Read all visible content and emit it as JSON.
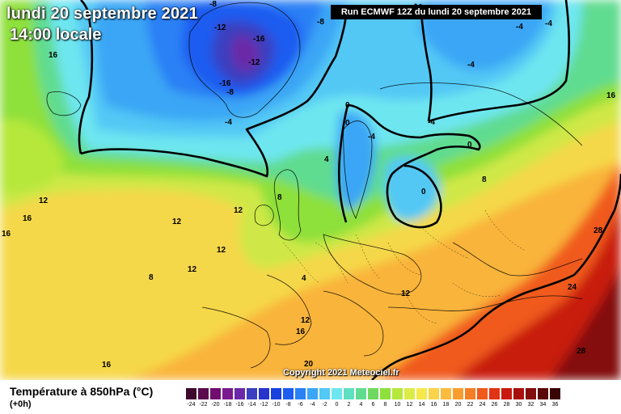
{
  "header": {
    "date": "lundi 20 septembre 2021",
    "time": "14:00 locale",
    "run": "Run ECMWF 12Z du lundi 20 septembre 2021"
  },
  "footer": {
    "copyright": "Copyright 2021 Meteociel.fr"
  },
  "legend": {
    "title": "Température à 850hPa (°C)",
    "subtitle": "(+0h)",
    "ticks": [
      "-24",
      "-22",
      "-20",
      "-18",
      "-16",
      "-14",
      "-12",
      "-10",
      "-8",
      "-6",
      "-4",
      "-2",
      "0",
      "2",
      "4",
      "6",
      "8",
      "10",
      "12",
      "14",
      "16",
      "18",
      "20",
      "22",
      "24",
      "26",
      "28",
      "30",
      "32",
      "34",
      "36"
    ],
    "colors": [
      "#3d0a2e",
      "#5a0b4e",
      "#700d6e",
      "#7a1a8e",
      "#6a2aa8",
      "#3b3fbf",
      "#2733cc",
      "#1a40e0",
      "#1d5cf0",
      "#2a80f5",
      "#3aa6f5",
      "#52c8f5",
      "#6ee6f0",
      "#5fe0c0",
      "#60dc90",
      "#6fd860",
      "#8ee03a",
      "#b5e83a",
      "#dcec46",
      "#f5e84a",
      "#fbd34a",
      "#fbbb3e",
      "#f99e2e",
      "#f67e24",
      "#f05a1c",
      "#e03414",
      "#c81a10",
      "#a8100e",
      "#840c0c",
      "#5c0808",
      "#380404"
    ]
  },
  "map": {
    "isotherm_labels": [
      {
        "text": "-12",
        "value": -12
      },
      {
        "text": "-16",
        "value": -16
      },
      {
        "text": "-12",
        "value": -12
      },
      {
        "text": "-16",
        "value": -16
      },
      {
        "text": "-8",
        "value": -8
      },
      {
        "text": "-8",
        "value": -8
      },
      {
        "text": "-8",
        "value": -8
      },
      {
        "text": "-4",
        "value": -4
      },
      {
        "text": "-4",
        "value": -4
      },
      {
        "text": "-4",
        "value": -4
      },
      {
        "text": "-4",
        "value": -4
      },
      {
        "text": "-4",
        "value": -4
      },
      {
        "text": "-4",
        "value": -4
      },
      {
        "text": "0",
        "value": 0
      },
      {
        "text": "0",
        "value": 0
      },
      {
        "text": "0",
        "value": 0
      },
      {
        "text": "0",
        "value": 0
      },
      {
        "text": "4",
        "value": 4
      },
      {
        "text": "4",
        "value": 4
      },
      {
        "text": "8",
        "value": 8
      },
      {
        "text": "8",
        "value": 8
      },
      {
        "text": "8",
        "value": 8
      },
      {
        "text": "12",
        "value": 12
      },
      {
        "text": "12",
        "value": 12
      },
      {
        "text": "12",
        "value": 12
      },
      {
        "text": "12",
        "value": 12
      },
      {
        "text": "12",
        "value": 12
      },
      {
        "text": "12",
        "value": 12
      },
      {
        "text": "12",
        "value": 12
      },
      {
        "text": "16",
        "value": 16
      },
      {
        "text": "16",
        "value": 16
      },
      {
        "text": "16",
        "value": 16
      },
      {
        "text": "16",
        "value": 16
      },
      {
        "text": "16",
        "value": 16
      },
      {
        "text": "16",
        "value": 16
      },
      {
        "text": "20",
        "value": 20
      },
      {
        "text": "24",
        "value": 24
      },
      {
        "text": "28",
        "value": 28
      },
      {
        "text": "28",
        "value": 28
      }
    ]
  }
}
